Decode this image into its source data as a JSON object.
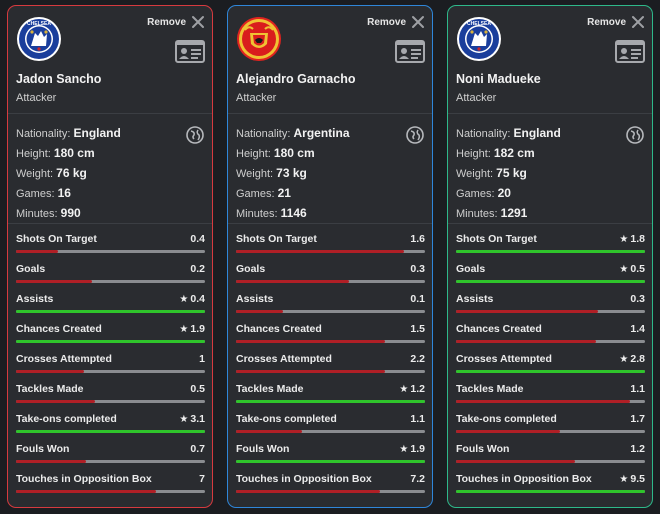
{
  "remove_label": "Remove",
  "colors": {
    "loser": "#b01f26",
    "best": "#2fc42b",
    "track": "#8a8c90"
  },
  "players": [
    {
      "club": "chelsea",
      "border": "#d63a3f",
      "name": "Jadon Sancho",
      "position": "Attacker",
      "nationality_label": "Nationality:",
      "nationality": "England",
      "height_label": "Height:",
      "height": "180 cm",
      "weight_label": "Weight:",
      "weight": "76 kg",
      "games_label": "Games:",
      "games": "16",
      "minutes_label": "Minutes:",
      "minutes": "990",
      "stats": [
        {
          "label": "Shots On Target",
          "value": "0.4",
          "best": false,
          "fill": 0.22
        },
        {
          "label": "Goals",
          "value": "0.2",
          "best": false,
          "fill": 0.4
        },
        {
          "label": "Assists",
          "value": "0.4",
          "best": true,
          "fill": 1.0
        },
        {
          "label": "Chances Created",
          "value": "1.9",
          "best": true,
          "fill": 1.0
        },
        {
          "label": "Crosses Attempted",
          "value": "1",
          "best": false,
          "fill": 0.36
        },
        {
          "label": "Tackles Made",
          "value": "0.5",
          "best": false,
          "fill": 0.42
        },
        {
          "label": "Take-ons completed",
          "value": "3.1",
          "best": true,
          "fill": 1.0
        },
        {
          "label": "Fouls Won",
          "value": "0.7",
          "best": false,
          "fill": 0.37
        },
        {
          "label": "Touches in Opposition Box",
          "value": "7",
          "best": false,
          "fill": 0.74
        }
      ]
    },
    {
      "club": "manutd",
      "border": "#2f86d9",
      "name": "Alejandro Garnacho",
      "position": "Attacker",
      "nationality_label": "Nationality:",
      "nationality": "Argentina",
      "height_label": "Height:",
      "height": "180 cm",
      "weight_label": "Weight:",
      "weight": "73 kg",
      "games_label": "Games:",
      "games": "21",
      "minutes_label": "Minutes:",
      "minutes": "1146",
      "stats": [
        {
          "label": "Shots On Target",
          "value": "1.6",
          "best": false,
          "fill": 0.89
        },
        {
          "label": "Goals",
          "value": "0.3",
          "best": false,
          "fill": 0.6
        },
        {
          "label": "Assists",
          "value": "0.1",
          "best": false,
          "fill": 0.25
        },
        {
          "label": "Chances Created",
          "value": "1.5",
          "best": false,
          "fill": 0.79
        },
        {
          "label": "Crosses Attempted",
          "value": "2.2",
          "best": false,
          "fill": 0.79
        },
        {
          "label": "Tackles Made",
          "value": "1.2",
          "best": true,
          "fill": 1.0
        },
        {
          "label": "Take-ons completed",
          "value": "1.1",
          "best": false,
          "fill": 0.35
        },
        {
          "label": "Fouls Won",
          "value": "1.9",
          "best": true,
          "fill": 1.0
        },
        {
          "label": "Touches in Opposition Box",
          "value": "7.2",
          "best": false,
          "fill": 0.76
        }
      ]
    },
    {
      "club": "chelsea",
      "border": "#2eb88a",
      "name": "Noni Madueke",
      "position": "Attacker",
      "nationality_label": "Nationality:",
      "nationality": "England",
      "height_label": "Height:",
      "height": "182 cm",
      "weight_label": "Weight:",
      "weight": "75 kg",
      "games_label": "Games:",
      "games": "20",
      "minutes_label": "Minutes:",
      "minutes": "1291",
      "stats": [
        {
          "label": "Shots On Target",
          "value": "1.8",
          "best": true,
          "fill": 1.0
        },
        {
          "label": "Goals",
          "value": "0.5",
          "best": true,
          "fill": 1.0
        },
        {
          "label": "Assists",
          "value": "0.3",
          "best": false,
          "fill": 0.75
        },
        {
          "label": "Chances Created",
          "value": "1.4",
          "best": false,
          "fill": 0.74
        },
        {
          "label": "Crosses Attempted",
          "value": "2.8",
          "best": true,
          "fill": 1.0
        },
        {
          "label": "Tackles Made",
          "value": "1.1",
          "best": false,
          "fill": 0.92
        },
        {
          "label": "Take-ons completed",
          "value": "1.7",
          "best": false,
          "fill": 0.55
        },
        {
          "label": "Fouls Won",
          "value": "1.2",
          "best": false,
          "fill": 0.63
        },
        {
          "label": "Touches in Opposition Box",
          "value": "9.5",
          "best": true,
          "fill": 1.0
        }
      ]
    }
  ]
}
